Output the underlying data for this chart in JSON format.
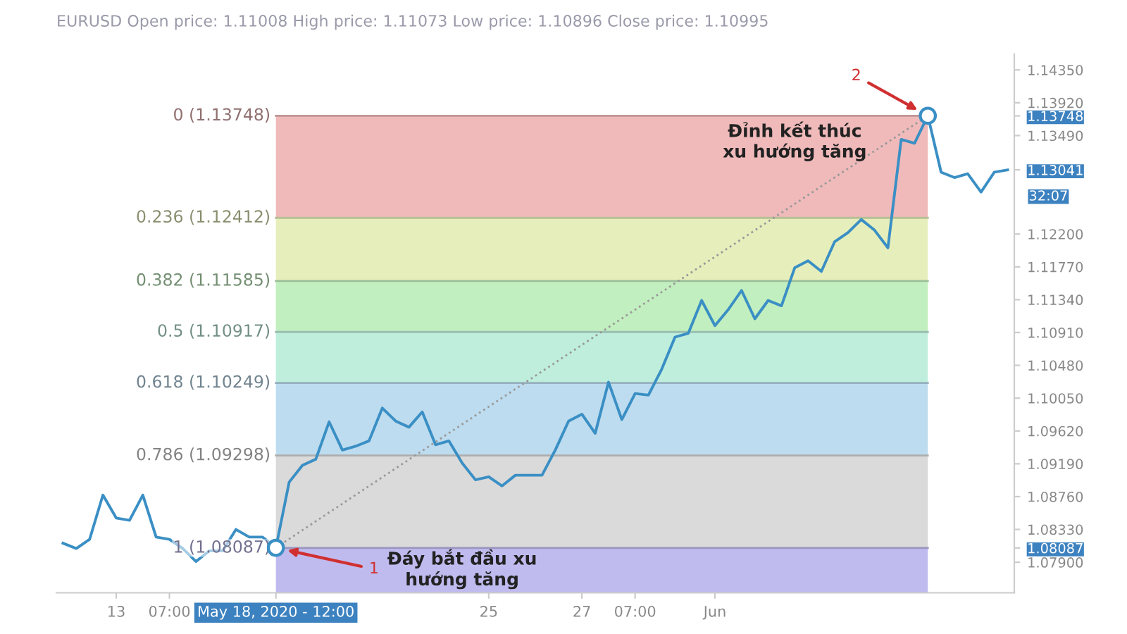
{
  "chart_data": {
    "type": "line",
    "title": "EURUSD Open price: 1.11008 High price: 1.11073 Low price: 1.10896 Close price: 1.10995",
    "categories": [
      null,
      null,
      null,
      null,
      "13",
      null,
      null,
      null,
      "07:00",
      null,
      null,
      null,
      null,
      null,
      null,
      null,
      "May 18, 2020 - 12:00",
      null,
      null,
      null,
      null,
      null,
      null,
      null,
      null,
      null,
      null,
      null,
      null,
      null,
      null,
      null,
      "25",
      null,
      null,
      null,
      null,
      null,
      null,
      "27",
      null,
      null,
      null,
      "07:00",
      null,
      null,
      null,
      null,
      null,
      "Jun",
      null,
      null,
      null,
      null,
      null,
      null,
      null,
      null,
      null,
      null,
      null,
      null,
      null,
      null,
      null,
      null,
      null,
      null,
      null,
      null,
      null,
      null
    ],
    "series": [
      {
        "color": "#3a8fc4",
        "values": [
          1.0815,
          1.0808,
          1.082,
          1.0878,
          1.0848,
          1.0845,
          1.0878,
          1.0823,
          1.082,
          1.0808,
          1.0791,
          1.0805,
          1.0805,
          1.0833,
          1.0823,
          1.0823,
          1.0809,
          1.0895,
          1.0917,
          1.0925,
          1.0974,
          1.0937,
          1.0942,
          1.0949,
          1.0992,
          1.0975,
          1.0967,
          1.0987,
          1.0944,
          1.0949,
          1.092,
          1.0898,
          1.0902,
          1.089,
          1.0904,
          1.0904,
          1.0904,
          1.0937,
          1.0975,
          1.0984,
          1.0959,
          1.1026,
          1.0977,
          1.1011,
          1.1009,
          1.1043,
          1.1085,
          1.109,
          1.1133,
          1.11,
          1.1121,
          1.1146,
          1.1109,
          1.1133,
          1.1126,
          1.1176,
          1.1185,
          1.1171,
          1.121,
          1.1222,
          1.1239,
          1.1225,
          1.1202,
          1.1344,
          1.1339,
          1.1375,
          1.1301,
          1.1294,
          1.1299,
          1.1275,
          1.1301,
          1.1304
        ]
      },
      {
        "type": "line",
        "color": "#999999",
        "line_style": "dotted",
        "values": [
          null,
          null,
          null,
          null,
          null,
          null,
          null,
          null,
          null,
          null,
          null,
          null,
          null,
          null,
          null,
          null,
          1.0809,
          null,
          null,
          null,
          null,
          null,
          null,
          null,
          null,
          null,
          null,
          null,
          null,
          null,
          null,
          null,
          null,
          null,
          null,
          null,
          null,
          null,
          null,
          null,
          null,
          null,
          null,
          null,
          null,
          null,
          null,
          null,
          null,
          null,
          null,
          null,
          null,
          null,
          null,
          null,
          null,
          null,
          null,
          null,
          null,
          null,
          null,
          null,
          null,
          1.1375,
          null,
          null,
          null,
          null,
          null,
          null
        ]
      },
      {
        "type": "scatter",
        "color": "#3a8fc4",
        "marker": "circle",
        "values": [
          null,
          null,
          null,
          null,
          null,
          null,
          null,
          null,
          null,
          null,
          null,
          null,
          null,
          null,
          null,
          null,
          1.0809,
          null,
          null,
          null,
          null,
          null,
          null,
          null,
          null,
          null,
          null,
          null,
          null,
          null,
          null,
          null,
          null,
          null,
          null,
          null,
          null,
          null,
          null,
          null,
          null,
          null,
          null,
          null,
          null,
          null,
          null,
          null,
          null,
          null,
          null,
          null,
          null,
          null,
          null,
          null,
          null,
          null,
          null,
          null,
          null,
          null,
          null,
          null,
          null,
          1.1375,
          null,
          null,
          null,
          null,
          null,
          null
        ]
      }
    ],
    "ylim": [
      1.075,
      1.1456
    ],
    "yticks": [
      {
        "value": 1.1435,
        "label": "1.14350"
      },
      {
        "value": 1.1392,
        "label": "1.13920"
      },
      {
        "value": 1.13748,
        "label": "1.13748"
      },
      {
        "value": 1.1349,
        "label": "1.13490"
      },
      {
        "value": 1.13041,
        "label": "1.13041"
      },
      {
        "value": 1.122,
        "label": "1.12200"
      },
      {
        "value": 1.1177,
        "label": "1.11770"
      },
      {
        "value": 1.1134,
        "label": "1.11340"
      },
      {
        "value": 1.1091,
        "label": "1.10910"
      },
      {
        "value": 1.1048,
        "label": "1.10480"
      },
      {
        "value": 1.1005,
        "label": "1.10050"
      },
      {
        "value": 1.0962,
        "label": "1.09620"
      },
      {
        "value": 1.0919,
        "label": "1.09190"
      },
      {
        "value": 1.0876,
        "label": "1.08760"
      },
      {
        "value": 1.0833,
        "label": "1.08330"
      },
      {
        "value": 1.08087,
        "label": "1.08087"
      },
      {
        "value": 1.079,
        "label": "1.07900"
      }
    ],
    "bands": [
      {
        "axis": "y",
        "from": 1.12412,
        "to": 1.13748,
        "label": "0 (1.13748)",
        "color": "#f0baba"
      },
      {
        "axis": "y",
        "from": 1.11585,
        "to": 1.12412,
        "label": "0.236 (1.12412)",
        "color": "#e6efbb"
      },
      {
        "axis": "y",
        "from": 1.10917,
        "to": 1.11585,
        "label": "0.382 (1.11585)",
        "color": "#c2efbf"
      },
      {
        "axis": "y",
        "from": 1.10249,
        "to": 1.10917,
        "label": "0.5 (1.10917)",
        "color": "#bfeedd"
      },
      {
        "axis": "y",
        "from": 1.09298,
        "to": 1.10249,
        "label": "0.618 (1.10249)",
        "color": "#bddcef"
      },
      {
        "axis": "y",
        "from": 1.08087,
        "to": 1.09298,
        "label": "0.786 (1.09298)",
        "color": "#dadada"
      },
      {
        "axis": "y",
        "from": 1.075,
        "to": 1.08087,
        "label": "1 (1.08087)",
        "color": "#c0bbef"
      }
    ],
    "annotations": [
      {
        "text": "1",
        "y": 1.0809
      },
      "Đáy bắt đầu xu\nhướng tăng",
      {
        "text": "2",
        "y": 1.1375
      },
      "Đỉnh kết thúc\nxu hướng tăng",
      "32:07"
    ],
    "grid": false,
    "legend": false
  }
}
